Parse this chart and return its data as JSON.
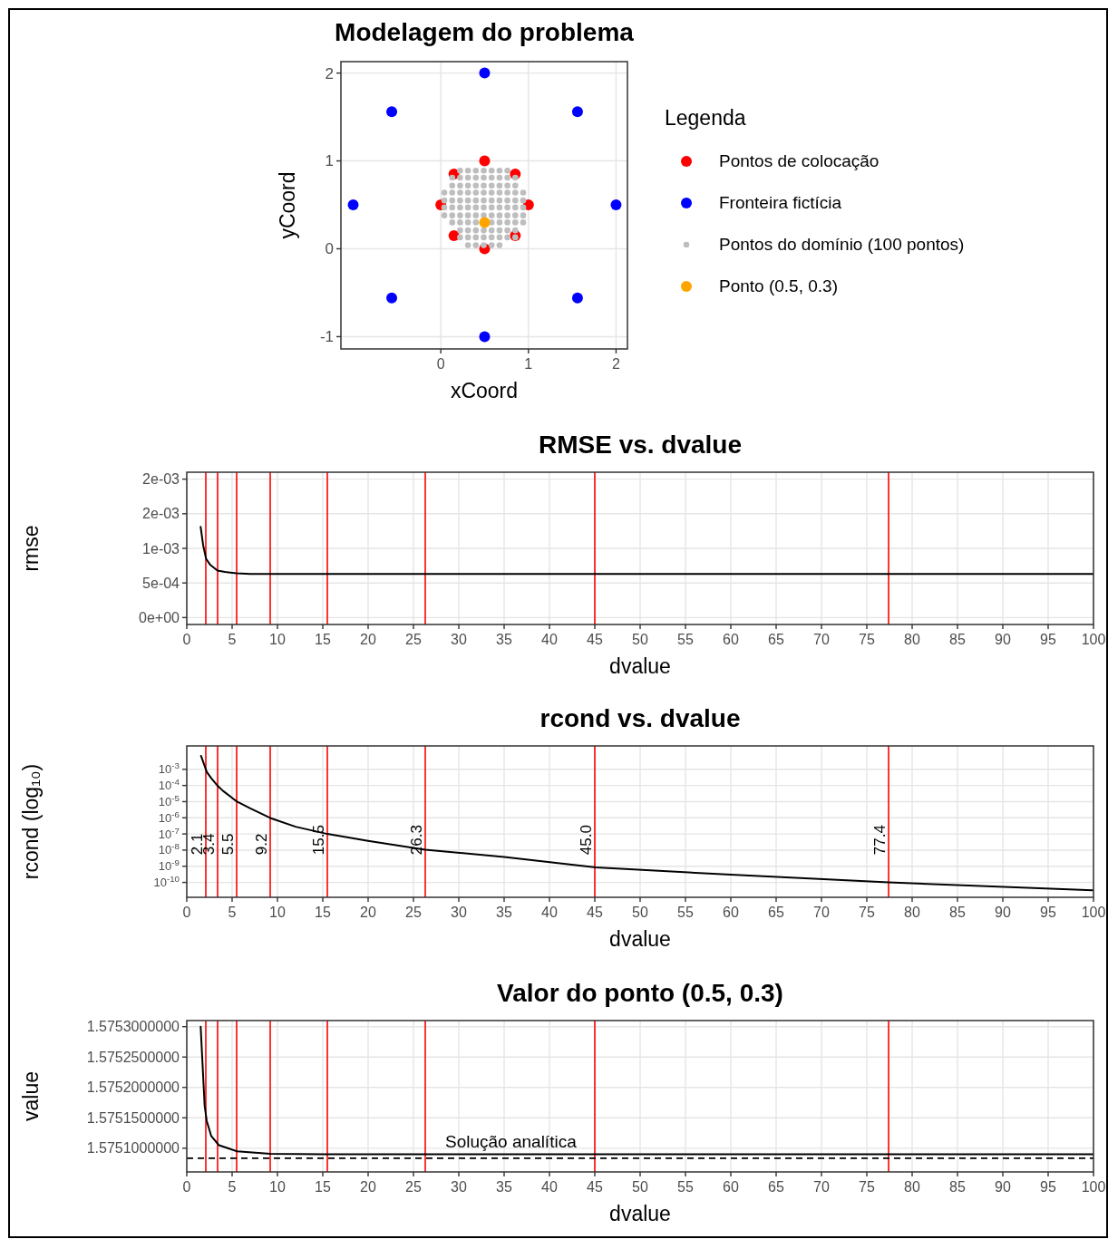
{
  "chart_data": [
    {
      "type": "scatter",
      "title": "Modelagem do problema",
      "xlabel": "xCoord",
      "ylabel": "yCoord",
      "legend_title": "Legenda",
      "xlim": [
        -1.14,
        2.13
      ],
      "ylim": [
        -1.14,
        2.13
      ],
      "xticks": [
        0,
        1,
        2
      ],
      "yticks": [
        -1,
        0,
        1,
        2
      ],
      "grid": true,
      "legend": "right",
      "marker": "circle",
      "series": [
        {
          "name": "Pontos de colocação",
          "color": "#ff0000",
          "x": [
            1,
            0.85,
            0.5,
            0.15,
            0,
            0.15,
            0.5,
            0.85
          ],
          "values": [
            0.5,
            0.85,
            1,
            0.85,
            0.5,
            0.15,
            0,
            0.15
          ]
        },
        {
          "name": "Fronteira fictícia",
          "color": "#0000ff",
          "x": [
            2,
            1.56,
            0.5,
            -0.56,
            -1,
            -0.56,
            0.5,
            1.56
          ],
          "values": [
            0.5,
            1.56,
            2,
            1.56,
            0.5,
            -0.56,
            -1,
            -0.56
          ]
        },
        {
          "name": "Pontos do domínio (100 pontos)",
          "color": "#bebebe",
          "x": [
            0.22,
            0.31,
            0.4,
            0.49,
            0.58,
            0.67,
            0.76,
            0.13,
            0.22,
            0.31,
            0.4,
            0.49,
            0.58,
            0.67,
            0.76,
            0.85,
            0.13,
            0.22,
            0.31,
            0.4,
            0.49,
            0.58,
            0.67,
            0.76,
            0.85,
            0.04,
            0.13,
            0.22,
            0.31,
            0.4,
            0.49,
            0.58,
            0.67,
            0.76,
            0.85,
            0.94,
            0.04,
            0.13,
            0.22,
            0.31,
            0.4,
            0.49,
            0.58,
            0.67,
            0.76,
            0.85,
            0.94,
            0.04,
            0.13,
            0.22,
            0.31,
            0.4,
            0.49,
            0.58,
            0.67,
            0.76,
            0.85,
            0.94,
            0.04,
            0.13,
            0.22,
            0.31,
            0.4,
            0.49,
            0.58,
            0.67,
            0.76,
            0.85,
            0.94,
            0.13,
            0.22,
            0.31,
            0.4,
            0.58,
            0.67,
            0.76,
            0.85,
            0.94,
            0.22,
            0.31,
            0.4,
            0.49,
            0.58,
            0.67,
            0.76,
            0.85,
            0.22,
            0.31,
            0.4,
            0.49,
            0.58,
            0.67,
            0.76,
            0.85,
            0.31,
            0.4,
            0.49,
            0.58,
            0.67
          ],
          "values": [
            0.89,
            0.89,
            0.89,
            0.89,
            0.89,
            0.89,
            0.89,
            0.81,
            0.81,
            0.81,
            0.81,
            0.81,
            0.81,
            0.81,
            0.81,
            0.81,
            0.72,
            0.72,
            0.72,
            0.72,
            0.72,
            0.72,
            0.72,
            0.72,
            0.72,
            0.64,
            0.64,
            0.64,
            0.64,
            0.64,
            0.64,
            0.64,
            0.64,
            0.64,
            0.64,
            0.64,
            0.55,
            0.55,
            0.55,
            0.55,
            0.55,
            0.55,
            0.55,
            0.55,
            0.55,
            0.55,
            0.55,
            0.47,
            0.47,
            0.47,
            0.47,
            0.47,
            0.47,
            0.47,
            0.47,
            0.47,
            0.47,
            0.47,
            0.38,
            0.38,
            0.38,
            0.38,
            0.38,
            0.38,
            0.38,
            0.38,
            0.38,
            0.38,
            0.38,
            0.3,
            0.3,
            0.3,
            0.3,
            0.3,
            0.3,
            0.3,
            0.3,
            0.3,
            0.21,
            0.21,
            0.21,
            0.21,
            0.21,
            0.21,
            0.21,
            0.21,
            0.13,
            0.13,
            0.13,
            0.13,
            0.13,
            0.13,
            0.13,
            0.13,
            0.04,
            0.04,
            0.04,
            0.04,
            0.04
          ]
        },
        {
          "name": "Ponto (0.5, 0.3)",
          "color": "#ffa500",
          "x": [
            0.5
          ],
          "values": [
            0.3
          ]
        }
      ]
    },
    {
      "type": "line",
      "title": "RMSE vs. dvalue",
      "xlabel": "dvalue",
      "ylabel": "rmse",
      "xlim": [
        0,
        100
      ],
      "ylim": [
        -0.0001,
        0.0021
      ],
      "xticks": [
        0,
        5,
        10,
        15,
        20,
        25,
        30,
        35,
        40,
        45,
        50,
        55,
        60,
        65,
        70,
        75,
        80,
        85,
        90,
        95,
        100
      ],
      "yticks": [
        {
          "value": 0,
          "label": "0e+00"
        },
        {
          "value": 0.0005,
          "label": "5e-04"
        },
        {
          "value": 0.001,
          "label": "1e-03"
        },
        {
          "value": 0.0015,
          "label": "2e-03"
        },
        {
          "value": 0.002,
          "label": "2e-03"
        }
      ],
      "grid": true,
      "series": [
        {
          "color": "#000000",
          "x": [
            1.53,
            1.8,
            2.13,
            2.6,
            3.38,
            4.2,
            5.5,
            7,
            9.2,
            15,
            30,
            50,
            75,
            100
          ],
          "values": [
            0.00131,
            0.00105,
            0.00085,
            0.00076,
            0.00068,
            0.00066,
            0.00064,
            0.00063,
            0.00063,
            0.00063,
            0.00063,
            0.00063,
            0.00063,
            0.00063
          ]
        }
      ],
      "ref_lines": [
        {
          "axis": "x",
          "value": 2.1,
          "color": "#ff0000"
        },
        {
          "axis": "x",
          "value": 3.4,
          "color": "#ff0000"
        },
        {
          "axis": "x",
          "value": 5.5,
          "color": "#ff0000"
        },
        {
          "axis": "x",
          "value": 9.2,
          "color": "#ff0000"
        },
        {
          "axis": "x",
          "value": 15.5,
          "color": "#ff0000"
        },
        {
          "axis": "x",
          "value": 26.3,
          "color": "#ff0000"
        },
        {
          "axis": "x",
          "value": 45.0,
          "color": "#ff0000"
        },
        {
          "axis": "x",
          "value": 77.4,
          "color": "#ff0000"
        }
      ]
    },
    {
      "type": "line",
      "title": "rcond vs. dvalue",
      "xlabel": "dvalue",
      "ylabel": "rcond  (log₁₀)",
      "log": "y",
      "xlim": [
        0,
        100
      ],
      "ylim": [
        1.2e-11,
        0.028
      ],
      "xticks": [
        0,
        5,
        10,
        15,
        20,
        25,
        30,
        35,
        40,
        45,
        50,
        55,
        60,
        65,
        70,
        75,
        80,
        85,
        90,
        95,
        100
      ],
      "yticks": [
        {
          "value": 0.001,
          "label": "10$^{-3}$"
        },
        {
          "value": 0.0001,
          "label": "10$^{-4}$"
        },
        {
          "value": 1e-05,
          "label": "10$^{-5}$"
        },
        {
          "value": 1e-06,
          "label": "10$^{-6}$"
        },
        {
          "value": 1e-07,
          "label": "10$^{-7}$"
        },
        {
          "value": 1e-08,
          "label": "10$^{-8}$"
        },
        {
          "value": 1e-09,
          "label": "10$^{-9}$"
        },
        {
          "value": 1e-10,
          "label": "10$^{-10}$"
        }
      ],
      "grid": true,
      "series": [
        {
          "color": "#000000",
          "x": [
            1.57,
            2.2,
            2.7,
            3.43,
            4,
            5.54,
            7,
            9.2,
            12,
            15.5,
            20,
            26.3,
            35,
            45.1,
            60,
            77.4,
            99.9
          ],
          "values": [
            0.0068,
            0.00069,
            0.00028,
            9.1e-05,
            4.6e-05,
            1e-05,
            3.8e-06,
            9.8e-07,
            2.8e-07,
            1e-07,
            3.7e-08,
            1.05e-08,
            3.8e-09,
            8.5e-10,
            3e-10,
            1e-10,
            3.3e-11
          ]
        }
      ],
      "ref_lines": [
        {
          "axis": "x",
          "value": 2.1,
          "label": "2.1",
          "color": "#ff0000"
        },
        {
          "axis": "x",
          "value": 3.4,
          "label": "3.4",
          "color": "#ff0000"
        },
        {
          "axis": "x",
          "value": 5.5,
          "label": "5.5",
          "color": "#ff0000"
        },
        {
          "axis": "x",
          "value": 9.2,
          "label": "9.2",
          "color": "#ff0000"
        },
        {
          "axis": "x",
          "value": 15.5,
          "label": "15.5",
          "color": "#ff0000"
        },
        {
          "axis": "x",
          "value": 26.3,
          "label": "26.3",
          "color": "#ff0000"
        },
        {
          "axis": "x",
          "value": 45.0,
          "label": "45.0",
          "color": "#ff0000"
        },
        {
          "axis": "x",
          "value": 77.4,
          "label": "77.4",
          "color": "#ff0000"
        }
      ]
    },
    {
      "type": "line",
      "title": "Valor do ponto (0.5, 0.3)",
      "xlabel": "dvalue",
      "ylabel": "value",
      "xlim": [
        0,
        100
      ],
      "ylim": [
        1.575061,
        1.57531
      ],
      "xticks": [
        0,
        5,
        10,
        15,
        20,
        25,
        30,
        35,
        40,
        45,
        50,
        55,
        60,
        65,
        70,
        75,
        80,
        85,
        90,
        95,
        100
      ],
      "yticks": [
        {
          "value": 1.5751,
          "label": "1.5751000000"
        },
        {
          "value": 1.57515,
          "label": "1.5751500000"
        },
        {
          "value": 1.5752,
          "label": "1.5752000000"
        },
        {
          "value": 1.57525,
          "label": "1.5752500000"
        },
        {
          "value": 1.5753,
          "label": "1.5753000000"
        }
      ],
      "grid": true,
      "series": [
        {
          "color": "#000000",
          "x": [
            1.53,
            1.97,
            2.2,
            2.7,
            3.54,
            5.54,
            9.2,
            15,
            30,
            50,
            75,
            100
          ],
          "values": [
            1.5753,
            1.57517,
            1.575145,
            1.57512,
            1.575105,
            1.575095,
            1.575091,
            1.57509,
            1.57509,
            1.57509,
            1.57509,
            1.57509
          ]
        }
      ],
      "ref_lines": [
        {
          "axis": "x",
          "value": 2.1,
          "color": "#ff0000"
        },
        {
          "axis": "x",
          "value": 3.4,
          "color": "#ff0000"
        },
        {
          "axis": "x",
          "value": 5.5,
          "color": "#ff0000"
        },
        {
          "axis": "x",
          "value": 9.2,
          "color": "#ff0000"
        },
        {
          "axis": "x",
          "value": 15.5,
          "color": "#ff0000"
        },
        {
          "axis": "x",
          "value": 26.3,
          "color": "#ff0000"
        },
        {
          "axis": "x",
          "value": 45.0,
          "color": "#ff0000"
        },
        {
          "axis": "x",
          "value": 77.4,
          "color": "#ff0000"
        },
        {
          "axis": "y",
          "value": 1.5750835,
          "label": "Solução analítica",
          "color": "#000000",
          "line_style": "dashed"
        }
      ]
    }
  ]
}
